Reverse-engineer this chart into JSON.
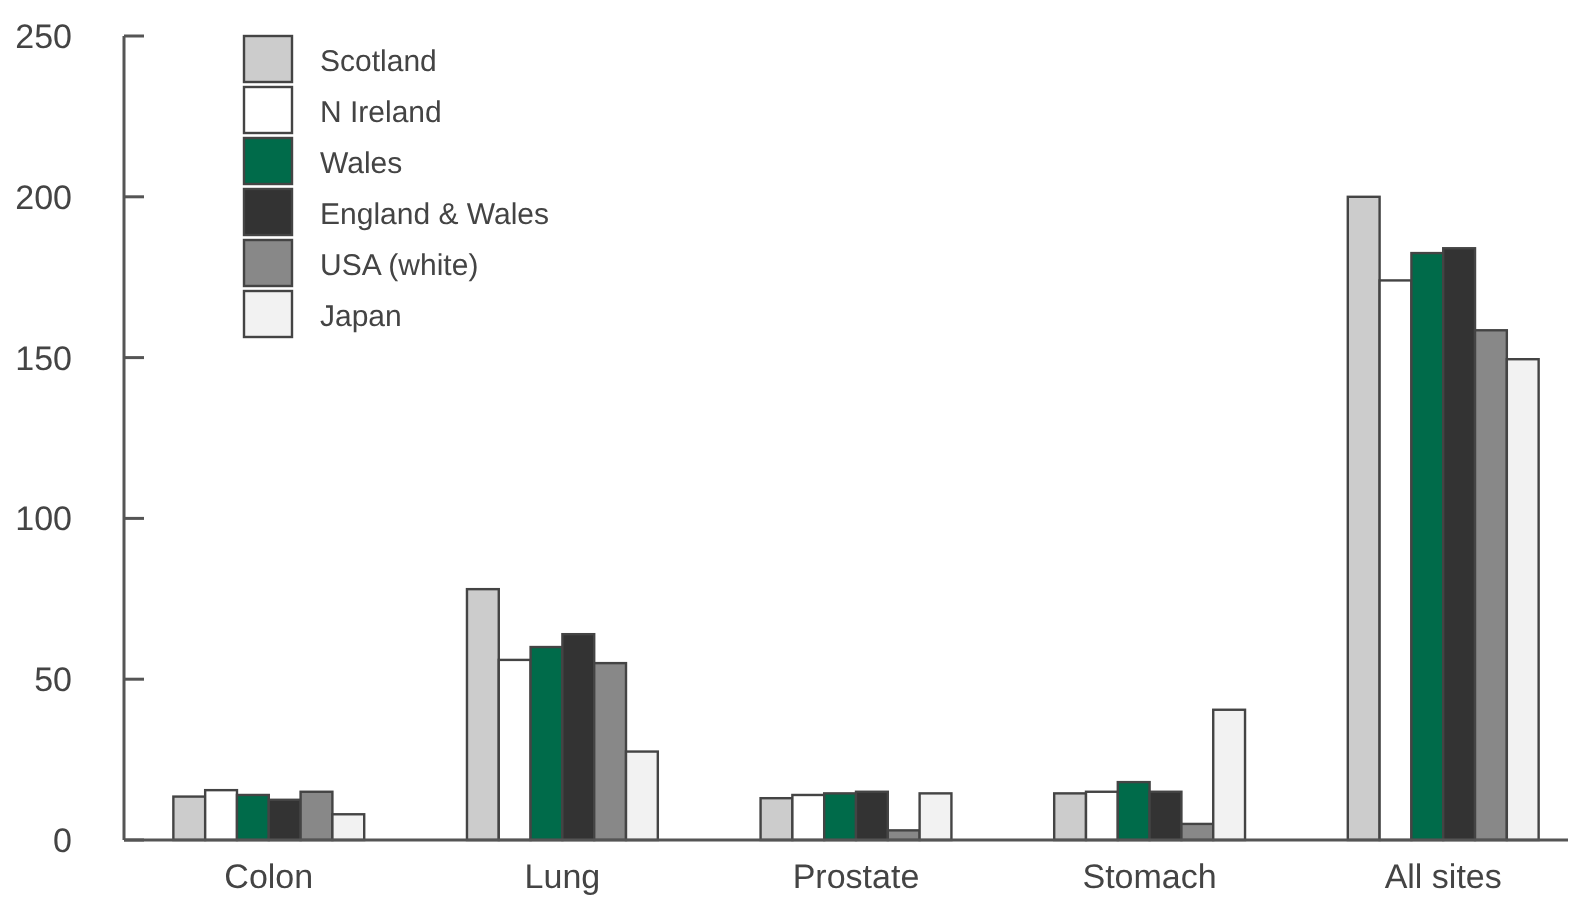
{
  "chart_data": {
    "type": "bar",
    "categories": [
      "Colon",
      "Lung",
      "Prostate",
      "Stomach",
      "All sites"
    ],
    "series": [
      {
        "name": "Scotland",
        "color": "#cccccc",
        "values": [
          13.5,
          78,
          13,
          14.5,
          200
        ]
      },
      {
        "name": "N Ireland",
        "color": "#ffffff",
        "values": [
          15.5,
          56,
          14,
          15,
          174
        ]
      },
      {
        "name": "Wales",
        "color": "#006b4a",
        "values": [
          14,
          60,
          14.5,
          18,
          182.5
        ]
      },
      {
        "name": "England & Wales",
        "color": "#333333",
        "values": [
          12.5,
          64,
          15,
          15,
          184
        ]
      },
      {
        "name": "USA (white)",
        "color": "#888888",
        "values": [
          15,
          55,
          3,
          5,
          158.5
        ]
      },
      {
        "name": "Japan",
        "color": "#f2f2f2",
        "values": [
          8,
          27.5,
          14.5,
          40.5,
          149.5
        ]
      }
    ],
    "ylim": [
      0,
      250
    ],
    "yticks": [
      0,
      50,
      100,
      150,
      200,
      250
    ],
    "grid": false,
    "legend": "top left"
  }
}
